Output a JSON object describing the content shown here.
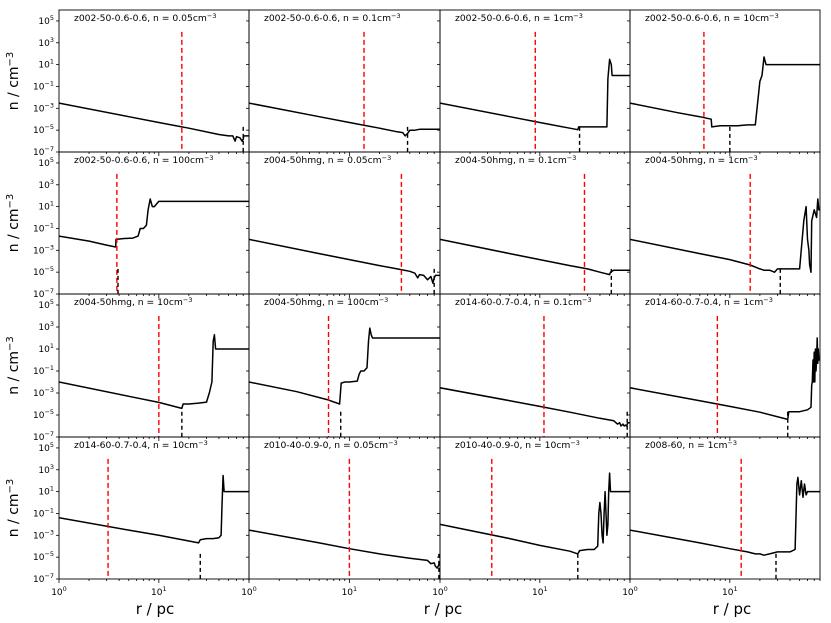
{
  "chart_data": {
    "type": "line",
    "layout": "4x4 grid of panels, shared x and y axes",
    "xlabel": "r / pc",
    "ylabel": "n / cm",
    "ylabel_exp": "−3",
    "xscale": "log",
    "yscale": "log",
    "xlim": [
      1,
      80
    ],
    "ylim": [
      1e-07,
      1000000.0
    ],
    "yticks": [
      {
        "b": "10",
        "e": "−7",
        "v": 1e-07
      },
      {
        "b": "10",
        "e": "−5",
        "v": 1e-05
      },
      {
        "b": "10",
        "e": "−3",
        "v": 0.001
      },
      {
        "b": "10",
        "e": "−1",
        "v": 0.1
      },
      {
        "b": "10",
        "e": "1",
        "v": 10
      },
      {
        "b": "10",
        "e": "3",
        "v": 1000
      },
      {
        "b": "10",
        "e": "5",
        "v": 100000
      }
    ],
    "xticks": [
      {
        "b": "10",
        "e": "0",
        "v": 1
      },
      {
        "b": "10",
        "e": "1",
        "v": 10
      }
    ],
    "colors": {
      "density": "#000000",
      "red_marker": "#ff0000",
      "black_marker": "#000000"
    },
    "panels": [
      {
        "title": "z002-50-0.6-0.6, n = 0.05cm",
        "tsup": "−3",
        "red_r": 17,
        "black_r": 70,
        "x": [
          1,
          5,
          10,
          20,
          40,
          50,
          55,
          58,
          60,
          65,
          68,
          70,
          71,
          75,
          80
        ],
        "y": [
          0.003,
          0.00017,
          5e-05,
          1.5e-05,
          4e-06,
          3e-06,
          3e-06,
          1e-06,
          2.5e-06,
          2e-06,
          1e-06,
          1.5e-06,
          3e-06,
          3e-06,
          3e-06
        ]
      },
      {
        "title": "z002-50-0.6-0.6, n = 0.1cm",
        "tsup": "−3",
        "red_r": 14,
        "black_r": 38,
        "x": [
          1,
          5,
          10,
          20,
          30,
          34,
          36,
          38,
          40,
          45,
          50,
          60,
          80
        ],
        "y": [
          0.003,
          0.00017,
          5e-05,
          1.5e-05,
          7e-06,
          6e-06,
          3e-06,
          5e-06,
          1e-05,
          1e-05,
          1.2e-05,
          1.2e-05,
          1.2e-05
        ]
      },
      {
        "title": "z002-50-0.6-0.6, n = 1cm",
        "tsup": "−3",
        "red_r": 9,
        "black_r": 25,
        "x": [
          1,
          5,
          10,
          20,
          24,
          24.5,
          30,
          40,
          47,
          48,
          50,
          52,
          53,
          54,
          60,
          80
        ],
        "y": [
          0.003,
          0.00017,
          5e-05,
          1.5e-05,
          1.1e-05,
          2e-05,
          2e-05,
          2e-05,
          2e-05,
          0.5,
          30,
          10,
          1,
          1,
          1,
          1
        ]
      },
      {
        "title": "z002-50-0.6-0.6, n = 10cm",
        "tsup": "−3",
        "red_r": 5.5,
        "black_r": 10,
        "x": [
          1,
          3,
          5,
          6.5,
          6.6,
          8,
          10,
          12,
          15,
          18,
          20,
          21,
          22,
          23,
          25,
          30,
          50,
          80
        ],
        "y": [
          0.003,
          0.0004,
          0.00017,
          0.0001,
          2e-05,
          2.5e-05,
          2.5e-05,
          2.5e-05,
          3e-05,
          3e-05,
          0.3,
          1,
          50,
          10,
          10,
          10,
          10,
          10
        ]
      },
      {
        "title": "z002-50-0.6-0.6, n = 100cm",
        "tsup": "−3",
        "red_r": 3.8,
        "black_r": 3.9,
        "x": [
          1,
          2,
          3,
          3.7,
          3.72,
          4.5,
          5.5,
          6.2,
          6.5,
          7,
          7.5,
          7.8,
          8.2,
          8.6,
          9,
          10,
          20,
          80
        ],
        "y": [
          0.02,
          0.007,
          0.003,
          0.002,
          0.01,
          0.012,
          0.013,
          0.02,
          0.1,
          0.1,
          0.2,
          5,
          50,
          10,
          10,
          30,
          30,
          30
        ]
      },
      {
        "title": "z004-50hmg, n = 0.05cm",
        "tsup": "−3",
        "red_r": 33,
        "black_r": 70,
        "x": [
          1,
          5,
          10,
          20,
          30,
          40,
          45,
          48,
          50,
          55,
          60,
          65,
          68,
          70,
          72,
          80
        ],
        "y": [
          0.01,
          0.0005,
          0.00014,
          4e-05,
          2e-05,
          1.2e-05,
          8e-06,
          3e-06,
          6e-06,
          5e-06,
          2e-06,
          4e-06,
          1e-06,
          3e-06,
          5e-06,
          5e-06
        ]
      },
      {
        "title": "z004-50hmg, n = 0.1cm",
        "tsup": "−3",
        "red_r": 28,
        "black_r": 52,
        "x": [
          1,
          5,
          10,
          20,
          30,
          40,
          50,
          51,
          55,
          60,
          70,
          80
        ],
        "y": [
          0.01,
          0.0005,
          0.00014,
          4e-05,
          2e-05,
          1e-05,
          6e-06,
          1e-05,
          1.5e-05,
          1.5e-05,
          1.5e-05,
          1.5e-05
        ]
      },
      {
        "title": "z004-50hmg, n = 1cm",
        "tsup": "−3",
        "red_r": 16,
        "black_r": 32,
        "x": [
          1,
          5,
          10,
          16,
          20,
          22,
          25,
          28,
          30,
          32,
          35,
          40,
          50,
          55,
          58,
          60,
          62,
          63,
          65,
          66,
          70,
          74,
          76,
          78,
          80
        ],
        "y": [
          0.01,
          0.0005,
          0.00014,
          4.5e-05,
          2e-05,
          1.5e-05,
          1.5e-05,
          1e-05,
          2e-05,
          2e-05,
          2e-05,
          2e-05,
          2e-05,
          0.5,
          10,
          0.01,
          0.001,
          5e-05,
          1e-05,
          0.5,
          5,
          1,
          50,
          5,
          5
        ]
      },
      {
        "title": "z004-50hmg, n = 10cm",
        "tsup": "−3",
        "red_r": 10,
        "black_r": 17,
        "x": [
          1,
          5,
          10,
          17,
          17.5,
          20,
          25,
          30,
          32,
          34,
          35,
          36,
          37,
          40,
          80
        ],
        "y": [
          0.01,
          0.0005,
          0.00014,
          4e-05,
          0.0001,
          0.0001,
          0.00012,
          0.00015,
          0.001,
          0.01,
          50,
          200,
          10,
          10,
          10
        ]
      },
      {
        "title": "z004-50hmg, n = 100cm",
        "tsup": "−3",
        "red_r": 6.2,
        "black_r": 8.2,
        "x": [
          1,
          3,
          6,
          8,
          8.3,
          9,
          10,
          11,
          12,
          12.5,
          13,
          14,
          15,
          15.5,
          16,
          16.5,
          17,
          20,
          30,
          80
        ],
        "y": [
          0.01,
          0.0013,
          0.00025,
          0.0001,
          0.008,
          0.01,
          0.01,
          0.011,
          0.012,
          0.05,
          0.1,
          0.1,
          0.2,
          50,
          800,
          200,
          100,
          100,
          100,
          100
        ]
      },
      {
        "title": "z014-60-0.7-0.4, n = 0.1cm",
        "tsup": "−3",
        "red_r": 11,
        "black_r": 75,
        "x": [
          1,
          5,
          10,
          20,
          40,
          55,
          60,
          63,
          65,
          68,
          70,
          72,
          74,
          76,
          78,
          80
        ],
        "y": [
          0.003,
          0.0002,
          6e-05,
          1.8e-05,
          5e-06,
          3e-06,
          1.5e-06,
          2e-06,
          1e-06,
          1.5e-06,
          1e-06,
          1.2e-06,
          1e-06,
          2e-06,
          2e-06,
          2e-06
        ]
      },
      {
        "title": "z014-60-0.7-0.4, n = 1cm",
        "tsup": "−3",
        "red_r": 7.5,
        "black_r": 38,
        "x": [
          1,
          5,
          10,
          20,
          38,
          39,
          50,
          60,
          65,
          66,
          67,
          68,
          69,
          70,
          71,
          72,
          73,
          74,
          75,
          76,
          77,
          78,
          80
        ],
        "y": [
          0.003,
          0.0002,
          6e-05,
          1.8e-05,
          4e-06,
          2e-05,
          2e-05,
          3e-05,
          5e-05,
          0.005,
          0.01,
          1,
          0.01,
          5,
          0.01,
          10,
          0.1,
          1,
          100,
          0.5,
          10,
          1,
          1
        ]
      },
      {
        "title": "z014-60-0.7-0.4, n = 10cm",
        "tsup": "−3",
        "red_r": 3.1,
        "black_r": 26,
        "x": [
          1,
          5,
          10,
          20,
          25,
          26,
          30,
          35,
          40,
          42,
          43,
          44,
          45,
          46,
          50,
          80
        ],
        "y": [
          0.04,
          0.003,
          0.001,
          0.0003,
          0.0002,
          0.0004,
          0.0005,
          0.0005,
          0.0006,
          0.001,
          1,
          300,
          10,
          10,
          10,
          10
        ]
      },
      {
        "title": "z010-40-0.9-0, n = 0.05cm",
        "tsup": "−3",
        "red_r": 10,
        "black_r": 78,
        "x": [
          1,
          5,
          10,
          20,
          40,
          60,
          65,
          70,
          72,
          75,
          78,
          80
        ],
        "y": [
          0.003,
          0.0002,
          6e-05,
          2e-05,
          8e-06,
          5e-06,
          2.5e-06,
          3e-06,
          1.5e-06,
          1e-06,
          2e-06,
          2e-06
        ]
      },
      {
        "title": "z010-40-0.9-0, n = 10cm",
        "tsup": "−3",
        "red_r": 3.3,
        "black_r": 24,
        "x": [
          1,
          5,
          10,
          20,
          24,
          25,
          30,
          35,
          38,
          39,
          40,
          41,
          42,
          43,
          44,
          45,
          46,
          47,
          48,
          49,
          50,
          51,
          52,
          55,
          80
        ],
        "y": [
          0.01,
          0.0005,
          0.00012,
          3.5e-05,
          2e-05,
          4e-05,
          5e-05,
          5e-05,
          0.0001,
          0.1,
          1,
          0.1,
          0.001,
          0.0002,
          0.1,
          10,
          0.1,
          0.001,
          0.01,
          10,
          500,
          10,
          10,
          10,
          10
        ]
      },
      {
        "title": "z008-60, n = 1cm",
        "tsup": "−3",
        "red_r": 13,
        "black_r": 29,
        "x": [
          1,
          5,
          10,
          15,
          18,
          20,
          22,
          25,
          30,
          40,
          45,
          47,
          48,
          50,
          52,
          54,
          56,
          58,
          60,
          62,
          65,
          70,
          80
        ],
        "y": [
          0.003,
          0.0002,
          6e-05,
          3e-05,
          2e-05,
          2e-05,
          1.5e-05,
          2e-05,
          3e-05,
          3e-05,
          5e-05,
          50,
          200,
          5,
          100,
          3,
          50,
          5,
          10,
          10,
          10,
          10,
          10
        ]
      }
    ]
  }
}
